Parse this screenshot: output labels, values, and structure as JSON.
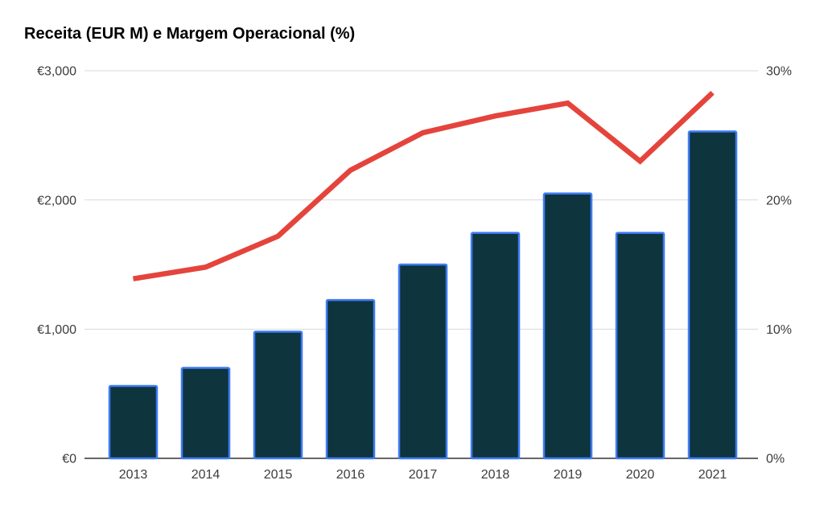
{
  "page": {
    "title": "Receita (EUR M) e Margem Operacional (%)"
  },
  "chart_data": {
    "type": "combo-bar-line",
    "title": "Receita (EUR M) e Margem Operacional (%)",
    "categories": [
      "2013",
      "2014",
      "2015",
      "2016",
      "2017",
      "2018",
      "2019",
      "2020",
      "2021"
    ],
    "series": [
      {
        "name": "Receita (EUR M)",
        "type": "bar",
        "axis": "left",
        "values": [
          560,
          700,
          980,
          1225,
          1500,
          1745,
          2050,
          1745,
          2530
        ]
      },
      {
        "name": "Margem Operacional (%)",
        "type": "line",
        "axis": "right",
        "values": [
          13.9,
          14.8,
          17.2,
          22.3,
          25.2,
          26.5,
          27.5,
          23.0,
          28.3
        ]
      }
    ],
    "left_axis": {
      "range": [
        0,
        3000
      ],
      "ticks": [
        0,
        1000,
        2000,
        3000
      ],
      "tick_labels": [
        "€0",
        "€1,000",
        "€2,000",
        "€3,000"
      ]
    },
    "right_axis": {
      "range": [
        0,
        30
      ],
      "ticks": [
        0,
        10,
        20,
        30
      ],
      "tick_labels": [
        "0%",
        "10%",
        "20%",
        "30%"
      ]
    },
    "grid": true,
    "legend": "none",
    "colors": {
      "background": "#ffffff",
      "title": "#000000",
      "bar_fill": "#0e343e",
      "bar_border": "#3e7cf6",
      "line": "#e4443c",
      "gridline": "#d9d9d9",
      "axis_line": "#333333",
      "tick_label": "#3c3c3c"
    }
  }
}
